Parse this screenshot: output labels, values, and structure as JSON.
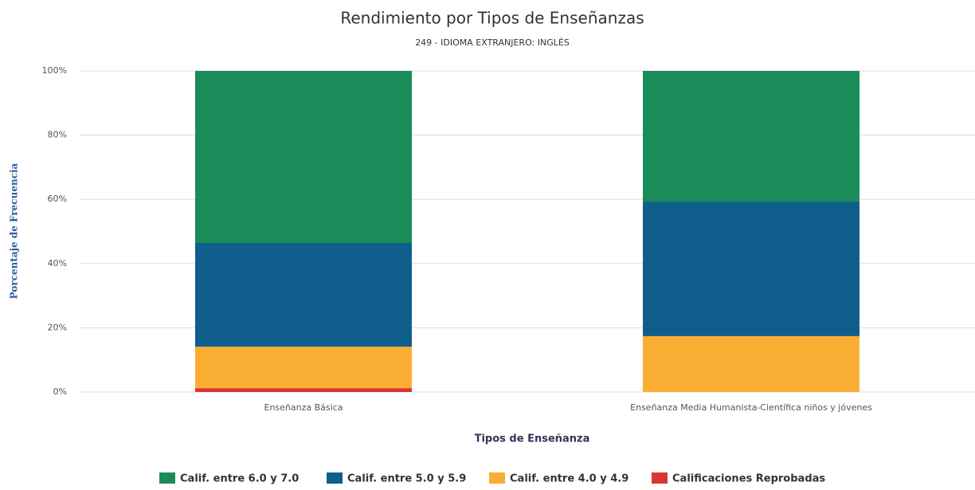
{
  "chart_data": {
    "type": "stacked_bar",
    "title": "Rendimiento por Tipos de Enseñanzas",
    "subtitle": "249 - IDIOMA EXTRANJERO: INGLÉS",
    "x_label": "Tipos de Enseñanza",
    "y_label": "Porcentaje de Frecuencia",
    "categories": [
      "Enseñanza Básica",
      "Enseñanza Media Humanista-Científica niños y jóvenes"
    ],
    "series": [
      {
        "name": "Calif. entre 6.0 y 7.0",
        "color": "#1a8c5a",
        "values": [
          53.6,
          40.7
        ]
      },
      {
        "name": "Calif. entre 5.0 y 5.9",
        "color": "#105e8c",
        "values": [
          32.3,
          41.9
        ]
      },
      {
        "name": "Calif. entre 4.0 y 4.9",
        "color": "#f9ae33",
        "values": [
          12.9,
          17.4
        ]
      },
      {
        "name": "Calificaciones Reprobadas",
        "color": "#d93636",
        "values": [
          1.2,
          0
        ]
      }
    ],
    "ylim": [
      0,
      100
    ],
    "yticks": [
      {
        "value": 0,
        "label": "0%"
      },
      {
        "value": 20,
        "label": "20%"
      },
      {
        "value": 40,
        "label": "40%"
      },
      {
        "value": 60,
        "label": "60%"
      },
      {
        "value": 80,
        "label": "80%"
      },
      {
        "value": 100,
        "label": "100%"
      }
    ],
    "grid": true
  }
}
